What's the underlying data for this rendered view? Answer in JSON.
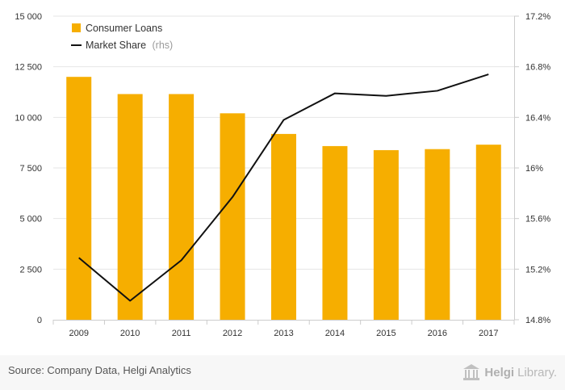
{
  "chart_data": {
    "type": "bar",
    "categories": [
      "2009",
      "2010",
      "2011",
      "2012",
      "2013",
      "2014",
      "2015",
      "2016",
      "2017"
    ],
    "series": [
      {
        "name": "Consumer Loans",
        "type": "bar",
        "axis": "left",
        "color": "#f6ae00",
        "values": [
          12000,
          11150,
          11150,
          10200,
          9180,
          8580,
          8380,
          8430,
          8650
        ]
      },
      {
        "name": "Market Share",
        "name_suffix": "(rhs)",
        "type": "line",
        "axis": "right",
        "color": "#111111",
        "values": [
          15.29,
          14.95,
          15.27,
          15.77,
          16.38,
          16.59,
          16.57,
          16.61,
          16.74
        ]
      }
    ],
    "y_left": {
      "ylim": [
        0,
        15000
      ],
      "ticks": [
        0,
        2500,
        5000,
        7500,
        10000,
        12500,
        15000
      ],
      "tick_labels": [
        "0",
        "2 500",
        "5 000",
        "7 500",
        "10 000",
        "12 500",
        "15 000"
      ]
    },
    "y_right": {
      "ylim": [
        14.8,
        17.2
      ],
      "ticks": [
        14.8,
        15.2,
        15.6,
        16.0,
        16.4,
        16.8,
        17.2
      ],
      "tick_labels": [
        "14.8%",
        "15.2%",
        "15.6%",
        "16%",
        "16.4%",
        "16.8%",
        "17.2%"
      ]
    },
    "grid": true,
    "legend_position": "top-left"
  },
  "footer": {
    "source": "Source: Company Data, Helgi Analytics",
    "brand_part1": "Helgi",
    "brand_part2": "Library."
  },
  "brand_icon": "library-building-icon"
}
